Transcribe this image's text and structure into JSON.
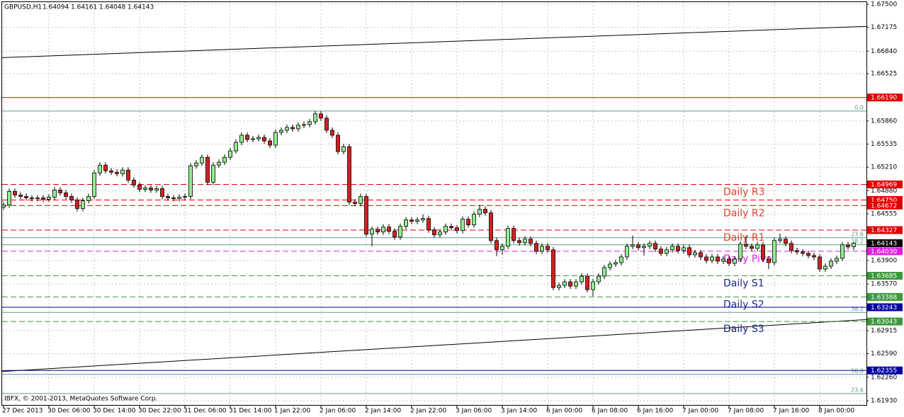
{
  "chart_data": {
    "type": "candlestick",
    "symbol": "GBPUSD,H1",
    "copyright": "IBFX, © 2001-2013, MetaQuotes Software Corp.",
    "ylim": [
      1.6186,
      1.6756
    ],
    "yticks": [
      {
        "value": 1.675,
        "label": "1.67500"
      },
      {
        "value": 1.67175,
        "label": "1.67175"
      },
      {
        "value": 1.6684,
        "label": "1.66840"
      },
      {
        "value": 1.66525,
        "label": "1.66525"
      },
      {
        "value": 1.6586,
        "label": "1.65860"
      },
      {
        "value": 1.65535,
        "label": "1.65535"
      },
      {
        "value": 1.6521,
        "label": "1.65210"
      },
      {
        "value": 1.6488,
        "label": "1.64880"
      },
      {
        "value": 1.64555,
        "label": "1.64555"
      },
      {
        "value": 1.639,
        "label": "1.63900"
      },
      {
        "value": 1.6357,
        "label": "1.63570"
      },
      {
        "value": 1.62915,
        "label": "1.62915"
      },
      {
        "value": 1.6259,
        "label": "1.62590"
      },
      {
        "value": 1.6226,
        "label": "1.62260"
      },
      {
        "value": 1.6193,
        "label": "1.61930"
      }
    ],
    "grid": true,
    "up_color": "#8fee8f",
    "down_color": "#d42020",
    "categories": [
      "27 Dec 2013",
      null,
      null,
      null,
      null,
      null,
      null,
      null,
      "30 Dec 06:00",
      null,
      null,
      null,
      null,
      null,
      null,
      null,
      "30 Dec 14:00",
      null,
      null,
      null,
      null,
      null,
      null,
      null,
      "30 Dec 22:00",
      null,
      null,
      null,
      null,
      null,
      null,
      null,
      "31 Dec 06:00",
      null,
      null,
      null,
      null,
      null,
      null,
      null,
      "31 Dec 14:00",
      null,
      null,
      null,
      null,
      null,
      null,
      null,
      "1 Jan 22:00",
      null,
      null,
      null,
      null,
      null,
      null,
      null,
      "2 Jan 06:00",
      null,
      null,
      null,
      null,
      null,
      null,
      null,
      "2 Jan 14:00",
      null,
      null,
      null,
      null,
      null,
      null,
      null,
      "2 Jan 22:00",
      null,
      null,
      null,
      null,
      null,
      null,
      null,
      "3 Jan 06:00",
      null,
      null,
      null,
      null,
      null,
      null,
      null,
      "3 Jan 14:00",
      null,
      null,
      null,
      null,
      null,
      null,
      null,
      "6 Jan 00:00",
      null,
      null,
      null,
      null,
      null,
      null,
      null,
      "6 Jan 08:00",
      null,
      null,
      null,
      null,
      null,
      null,
      null,
      "6 Jan 16:00",
      null,
      null,
      null,
      null,
      null,
      null,
      null,
      "7 Jan 00:00",
      null,
      null,
      null,
      null,
      null,
      null,
      null,
      "7 Jan 08:00",
      null,
      null,
      null,
      null,
      null,
      null,
      null,
      "7 Jan 16:00",
      null,
      null,
      null,
      null,
      null,
      null,
      null,
      "8 Jan 00:00",
      null,
      null,
      null,
      null,
      null,
      null
    ],
    "ohlc": [
      [
        1.6465,
        1.6472,
        1.6461,
        1.6468
      ],
      [
        1.6468,
        1.6491,
        1.6464,
        1.6487
      ],
      [
        1.6487,
        1.6491,
        1.6478,
        1.6482
      ],
      [
        1.6482,
        1.6486,
        1.6476,
        1.648
      ],
      [
        1.648,
        1.6484,
        1.6474,
        1.6478
      ],
      [
        1.6478,
        1.6482,
        1.6473,
        1.6477
      ],
      [
        1.6477,
        1.6482,
        1.6473,
        1.6478
      ],
      [
        1.6478,
        1.6482,
        1.6472,
        1.6476
      ],
      [
        1.6476,
        1.6483,
        1.6472,
        1.6479
      ],
      [
        1.6479,
        1.6493,
        1.6475,
        1.6489
      ],
      [
        1.6489,
        1.6493,
        1.6481,
        1.6485
      ],
      [
        1.6485,
        1.6489,
        1.6476,
        1.648
      ],
      [
        1.648,
        1.6484,
        1.6471,
        1.6475
      ],
      [
        1.6475,
        1.6479,
        1.6459,
        1.6463
      ],
      [
        1.6463,
        1.6478,
        1.6459,
        1.6474
      ],
      [
        1.6474,
        1.6484,
        1.647,
        1.648
      ],
      [
        1.648,
        1.6517,
        1.6476,
        1.6513
      ],
      [
        1.6513,
        1.6528,
        1.6509,
        1.6524
      ],
      [
        1.6524,
        1.6528,
        1.6512,
        1.6516
      ],
      [
        1.6516,
        1.652,
        1.651,
        1.6514
      ],
      [
        1.6514,
        1.6518,
        1.6508,
        1.6512
      ],
      [
        1.6512,
        1.6521,
        1.6508,
        1.6517
      ],
      [
        1.6517,
        1.6521,
        1.6499,
        1.6503
      ],
      [
        1.6503,
        1.6507,
        1.6492,
        1.6496
      ],
      [
        1.6496,
        1.65,
        1.6486,
        1.649
      ],
      [
        1.649,
        1.6496,
        1.6486,
        1.6492
      ],
      [
        1.6492,
        1.6496,
        1.6485,
        1.6489
      ],
      [
        1.6489,
        1.6495,
        1.6485,
        1.6491
      ],
      [
        1.6491,
        1.6495,
        1.6476,
        1.648
      ],
      [
        1.648,
        1.6484,
        1.6474,
        1.6478
      ],
      [
        1.6478,
        1.6482,
        1.6473,
        1.6477
      ],
      [
        1.6477,
        1.6483,
        1.6473,
        1.6479
      ],
      [
        1.6479,
        1.6484,
        1.6475,
        1.648
      ],
      [
        1.648,
        1.6527,
        1.6476,
        1.6523
      ],
      [
        1.6523,
        1.6531,
        1.6519,
        1.6527
      ],
      [
        1.6527,
        1.6539,
        1.6523,
        1.6535
      ],
      [
        1.6535,
        1.6539,
        1.6496,
        1.65
      ],
      [
        1.65,
        1.6528,
        1.6496,
        1.6524
      ],
      [
        1.6524,
        1.6532,
        1.652,
        1.6528
      ],
      [
        1.6528,
        1.6539,
        1.6524,
        1.6535
      ],
      [
        1.6535,
        1.6548,
        1.6531,
        1.6544
      ],
      [
        1.6544,
        1.656,
        1.654,
        1.6556
      ],
      [
        1.6556,
        1.657,
        1.6552,
        1.6566
      ],
      [
        1.6566,
        1.657,
        1.6556,
        1.656
      ],
      [
        1.656,
        1.6565,
        1.6556,
        1.6561
      ],
      [
        1.6561,
        1.6567,
        1.6557,
        1.6563
      ],
      [
        1.6563,
        1.6567,
        1.6554,
        1.6558
      ],
      [
        1.6558,
        1.6562,
        1.6548,
        1.6552
      ],
      [
        1.6552,
        1.6574,
        1.6548,
        1.657
      ],
      [
        1.657,
        1.6577,
        1.6566,
        1.6573
      ],
      [
        1.6573,
        1.6581,
        1.6569,
        1.6577
      ],
      [
        1.6577,
        1.6581,
        1.6571,
        1.6575
      ],
      [
        1.6575,
        1.6584,
        1.6571,
        1.658
      ],
      [
        1.658,
        1.6585,
        1.6576,
        1.6581
      ],
      [
        1.6581,
        1.6589,
        1.6577,
        1.6585
      ],
      [
        1.6585,
        1.66,
        1.6581,
        1.6596
      ],
      [
        1.6596,
        1.66,
        1.6586,
        1.659
      ],
      [
        1.659,
        1.6594,
        1.6569,
        1.6573
      ],
      [
        1.6573,
        1.6577,
        1.6562,
        1.6566
      ],
      [
        1.6566,
        1.657,
        1.6539,
        1.6543
      ],
      [
        1.6543,
        1.6554,
        1.6539,
        1.655
      ],
      [
        1.655,
        1.6554,
        1.6468,
        1.6472
      ],
      [
        1.6472,
        1.6476,
        1.6466,
        1.647
      ],
      [
        1.647,
        1.6484,
        1.6466,
        1.648
      ],
      [
        1.648,
        1.6484,
        1.6423,
        1.6427
      ],
      [
        1.6427,
        1.6438,
        1.641,
        1.6434
      ],
      [
        1.6434,
        1.6438,
        1.6426,
        1.643
      ],
      [
        1.643,
        1.6441,
        1.6426,
        1.6437
      ],
      [
        1.6437,
        1.6441,
        1.6427,
        1.6431
      ],
      [
        1.6431,
        1.6435,
        1.6419,
        1.6423
      ],
      [
        1.6423,
        1.6442,
        1.6419,
        1.6438
      ],
      [
        1.6438,
        1.6451,
        1.6434,
        1.6447
      ],
      [
        1.6447,
        1.6451,
        1.6441,
        1.6445
      ],
      [
        1.6445,
        1.6451,
        1.6441,
        1.6447
      ],
      [
        1.6447,
        1.6455,
        1.6443,
        1.6449
      ],
      [
        1.6449,
        1.6453,
        1.6429,
        1.6433
      ],
      [
        1.6433,
        1.6437,
        1.6422,
        1.6426
      ],
      [
        1.6426,
        1.6434,
        1.6422,
        1.643
      ],
      [
        1.643,
        1.6442,
        1.6426,
        1.6438
      ],
      [
        1.6438,
        1.6442,
        1.6432,
        1.6436
      ],
      [
        1.6436,
        1.644,
        1.6428,
        1.6432
      ],
      [
        1.6432,
        1.6452,
        1.6428,
        1.6448
      ],
      [
        1.6448,
        1.6452,
        1.6436,
        1.644
      ],
      [
        1.644,
        1.6459,
        1.6436,
        1.6455
      ],
      [
        1.6455,
        1.6468,
        1.6451,
        1.6462
      ],
      [
        1.6462,
        1.6466,
        1.6453,
        1.6457
      ],
      [
        1.6457,
        1.6461,
        1.6414,
        1.6418
      ],
      [
        1.6418,
        1.6422,
        1.6396,
        1.6405
      ],
      [
        1.6405,
        1.6414,
        1.6398,
        1.641
      ],
      [
        1.641,
        1.6439,
        1.6406,
        1.6435
      ],
      [
        1.6435,
        1.6439,
        1.6414,
        1.6418
      ],
      [
        1.6418,
        1.6422,
        1.6411,
        1.6415
      ],
      [
        1.6415,
        1.6424,
        1.6411,
        1.642
      ],
      [
        1.642,
        1.6424,
        1.641,
        1.6414
      ],
      [
        1.6414,
        1.6418,
        1.6399,
        1.6403
      ],
      [
        1.6403,
        1.6414,
        1.6399,
        1.641
      ],
      [
        1.641,
        1.6414,
        1.6401,
        1.6405
      ],
      [
        1.6405,
        1.6409,
        1.6348,
        1.6352
      ],
      [
        1.6352,
        1.6359,
        1.6348,
        1.6355
      ],
      [
        1.6355,
        1.6364,
        1.6351,
        1.636
      ],
      [
        1.636,
        1.6364,
        1.635,
        1.6354
      ],
      [
        1.6354,
        1.6364,
        1.635,
        1.636
      ],
      [
        1.636,
        1.6372,
        1.6356,
        1.6368
      ],
      [
        1.6368,
        1.6372,
        1.6345,
        1.6349
      ],
      [
        1.6349,
        1.6364,
        1.634,
        1.636
      ],
      [
        1.636,
        1.6372,
        1.6356,
        1.6368
      ],
      [
        1.6368,
        1.6384,
        1.6364,
        1.638
      ],
      [
        1.638,
        1.6389,
        1.6376,
        1.6385
      ],
      [
        1.6385,
        1.6391,
        1.6381,
        1.6387
      ],
      [
        1.6387,
        1.6399,
        1.6383,
        1.6395
      ],
      [
        1.6395,
        1.6414,
        1.6391,
        1.641
      ],
      [
        1.641,
        1.6425,
        1.6406,
        1.6412
      ],
      [
        1.6412,
        1.6416,
        1.6404,
        1.6408
      ],
      [
        1.6408,
        1.6414,
        1.6397,
        1.641
      ],
      [
        1.641,
        1.6418,
        1.6406,
        1.6414
      ],
      [
        1.6414,
        1.6418,
        1.6402,
        1.6406
      ],
      [
        1.6406,
        1.641,
        1.6396,
        1.64
      ],
      [
        1.64,
        1.6409,
        1.6396,
        1.6405
      ],
      [
        1.6405,
        1.6414,
        1.6401,
        1.641
      ],
      [
        1.641,
        1.6414,
        1.64,
        1.6404
      ],
      [
        1.6404,
        1.6412,
        1.64,
        1.6408
      ],
      [
        1.6408,
        1.6412,
        1.6394,
        1.6398
      ],
      [
        1.6398,
        1.6405,
        1.6394,
        1.6401
      ],
      [
        1.6401,
        1.6405,
        1.6391,
        1.6395
      ],
      [
        1.6395,
        1.6399,
        1.6386,
        1.639
      ],
      [
        1.639,
        1.6399,
        1.6386,
        1.6395
      ],
      [
        1.6395,
        1.6399,
        1.6385,
        1.6389
      ],
      [
        1.6389,
        1.6396,
        1.6385,
        1.6392
      ],
      [
        1.6392,
        1.6396,
        1.6382,
        1.6386
      ],
      [
        1.6386,
        1.6396,
        1.6382,
        1.6392
      ],
      [
        1.6392,
        1.6417,
        1.6388,
        1.6413
      ],
      [
        1.6413,
        1.6425,
        1.6406,
        1.641
      ],
      [
        1.641,
        1.6414,
        1.6403,
        1.6407
      ],
      [
        1.6407,
        1.6416,
        1.6403,
        1.6412
      ],
      [
        1.6412,
        1.6416,
        1.6388,
        1.6392
      ],
      [
        1.6392,
        1.6396,
        1.6378,
        1.6387
      ],
      [
        1.6387,
        1.6422,
        1.6383,
        1.6418
      ],
      [
        1.6418,
        1.6428,
        1.6414,
        1.642
      ],
      [
        1.642,
        1.6424,
        1.641,
        1.6414
      ],
      [
        1.6414,
        1.6418,
        1.64,
        1.6404
      ],
      [
        1.6404,
        1.6408,
        1.6398,
        1.6402
      ],
      [
        1.6402,
        1.6406,
        1.6396,
        1.64
      ],
      [
        1.64,
        1.6404,
        1.6393,
        1.6397
      ],
      [
        1.6397,
        1.6401,
        1.6391,
        1.6395
      ],
      [
        1.6395,
        1.6399,
        1.6374,
        1.6378
      ],
      [
        1.6378,
        1.6386,
        1.6374,
        1.6382
      ],
      [
        1.6382,
        1.6393,
        1.6378,
        1.6389
      ],
      [
        1.6389,
        1.6397,
        1.6385,
        1.6393
      ],
      [
        1.6393,
        1.6416,
        1.6389,
        1.6412
      ],
      [
        1.6412,
        1.6416,
        1.6405,
        1.6409
      ],
      [
        1.64094,
        1.64161,
        1.64048,
        1.64143
      ]
    ],
    "levels": [
      {
        "value": 1.6619,
        "label": "1.66190",
        "color": "#e00000",
        "dash": false
      },
      {
        "value": 1.64969,
        "label": "1.64969",
        "name": "Daily R3",
        "color": "#e00000",
        "name_color": "#e0412f",
        "dash": true
      },
      {
        "value": 1.6475,
        "label": "1.64750",
        "color": "#e00000",
        "dash": true
      },
      {
        "value": 1.64672,
        "label": "1.64672",
        "name": "Daily R2",
        "color": "#e00000",
        "name_color": "#e0412f",
        "dash": true
      },
      {
        "value": 1.64327,
        "label": "1.64327",
        "name": "Daily R1",
        "color": "#e00000",
        "name_color": "#e0412f",
        "dash": true
      },
      {
        "value": 1.6403,
        "label": "1.64030",
        "name": "Daily Pivot",
        "color": "#e020e0",
        "name_color": "#e020e0",
        "dash": true
      },
      {
        "value": 1.63685,
        "label": "1.63685",
        "name": "Daily S1",
        "color": "#3a9a3a",
        "name_color": "#1c2a7a",
        "dash": true
      },
      {
        "value": 1.63388,
        "label": "1.63388",
        "name": "Daily S2",
        "color": "#3a9a3a",
        "name_color": "#1c2a7a",
        "dash": true
      },
      {
        "value": 1.63243,
        "label": "1.63243",
        "color": "#0000a0",
        "dash": false
      },
      {
        "value": 1.63043,
        "label": "1.63043",
        "name": "Daily S3",
        "color": "#3a9a3a",
        "name_color": "#1c2a7a",
        "dash": true
      },
      {
        "value": 1.62355,
        "label": "1.62355",
        "color": "#0000a0",
        "dash": false
      }
    ],
    "fibs": [
      {
        "value": 1.66,
        "label": "0.0"
      },
      {
        "value": 1.6422,
        "label": "23.6"
      },
      {
        "value": 1.6412,
        "label": "38.2"
      },
      {
        "value": 1.6317,
        "label": "38.2"
      },
      {
        "value": 1.623,
        "label": "50.0"
      },
      {
        "value": 1.6203,
        "label": "23.6"
      }
    ],
    "fib_color": "#5a9a8a",
    "trendlines": [
      {
        "start": 1.6675,
        "end": 1.6719
      },
      {
        "start": 1.6234,
        "end": 1.6307
      }
    ]
  }
}
